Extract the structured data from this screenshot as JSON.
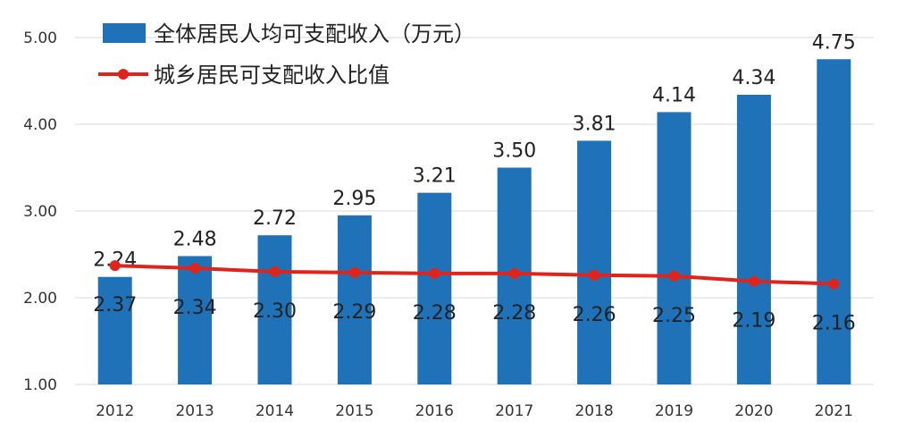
{
  "chart_data": {
    "type": "bar+line",
    "categories": [
      "2012",
      "2013",
      "2014",
      "2015",
      "2016",
      "2017",
      "2018",
      "2019",
      "2020",
      "2021"
    ],
    "series": [
      {
        "name": "全体居民人均可支配收入（万元）",
        "type": "bar",
        "color": "#1f72b8",
        "values": [
          2.24,
          2.48,
          2.72,
          2.95,
          3.21,
          3.5,
          3.81,
          4.14,
          4.34,
          4.75
        ],
        "labels": [
          "2.24",
          "2.48",
          "2.72",
          "2.95",
          "3.21",
          "3.50",
          "3.81",
          "4.14",
          "4.34",
          "4.75"
        ]
      },
      {
        "name": "城乡居民可支配收入比值",
        "type": "line",
        "color": "#e0241b",
        "values": [
          2.37,
          2.34,
          2.3,
          2.29,
          2.28,
          2.28,
          2.26,
          2.25,
          2.19,
          2.16
        ],
        "labels": [
          "2.37",
          "2.34",
          "2.30",
          "2.29",
          "2.28",
          "2.28",
          "2.26",
          "2.25",
          "2.19",
          "2.16"
        ]
      }
    ],
    "yticks": [
      "1.00",
      "2.00",
      "3.00",
      "4.00",
      "5.00"
    ],
    "ylim": [
      1.0,
      5.0
    ],
    "grid": true,
    "legend_position": "top-left"
  }
}
